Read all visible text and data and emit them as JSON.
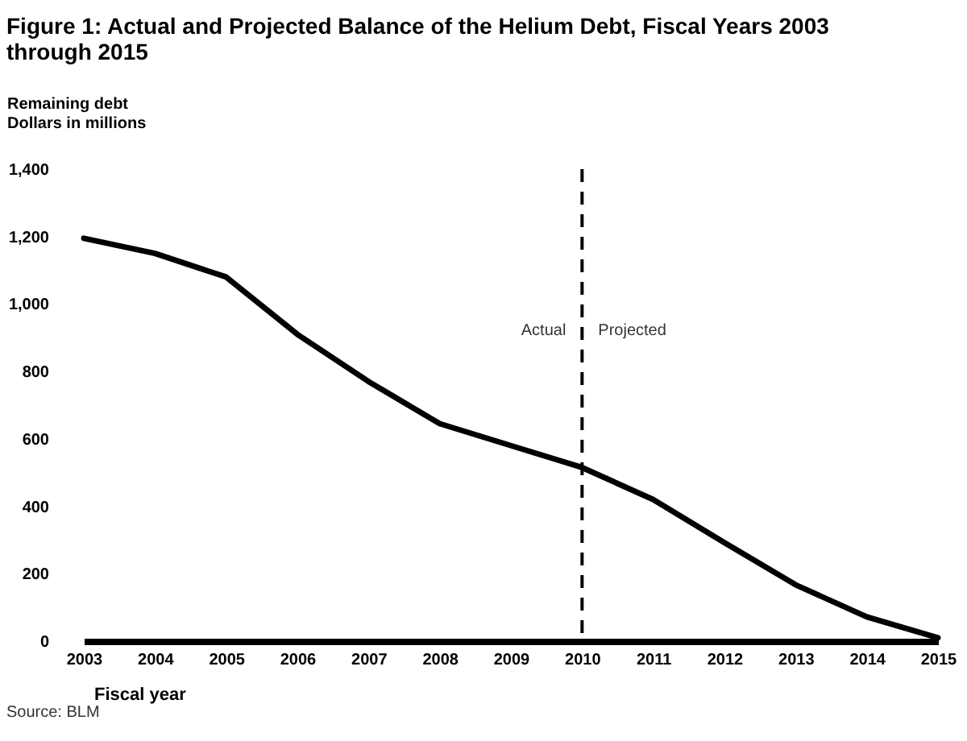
{
  "chart_data": {
    "type": "line",
    "title": "Figure 1: Actual and Projected Balance of the Helium Debt, Fiscal Years 2003 through 2015",
    "ylabel": "Remaining debt\nDollars in millions",
    "xlabel": "Fiscal year",
    "x": [
      2003,
      2004,
      2005,
      2006,
      2007,
      2008,
      2009,
      2010,
      2011,
      2012,
      2013,
      2014,
      2015
    ],
    "series": [
      {
        "color": "#000000",
        "values": [
          1195,
          1150,
          1080,
          910,
          770,
          645,
          580,
          515,
          420,
          292,
          167,
          72,
          10
        ]
      }
    ],
    "xlim": [
      2003,
      2015
    ],
    "xticks": [
      2003,
      2004,
      2005,
      2006,
      2007,
      2008,
      2009,
      2010,
      2011,
      2012,
      2013,
      2014,
      2015
    ],
    "ylim": [
      0,
      1400
    ],
    "yticks": [
      0,
      200,
      400,
      600,
      800,
      {
        "value": 1000,
        "label": "1,000"
      },
      {
        "value": 1200,
        "label": "1,200"
      },
      {
        "value": 1400,
        "label": "1,400"
      }
    ],
    "ref_lines": [
      {
        "axis": "x",
        "value": 2010,
        "color": "#000000",
        "line_style": "dashed"
      }
    ],
    "annotations": [
      "Actual",
      "Projected",
      "Source: BLM"
    ]
  }
}
